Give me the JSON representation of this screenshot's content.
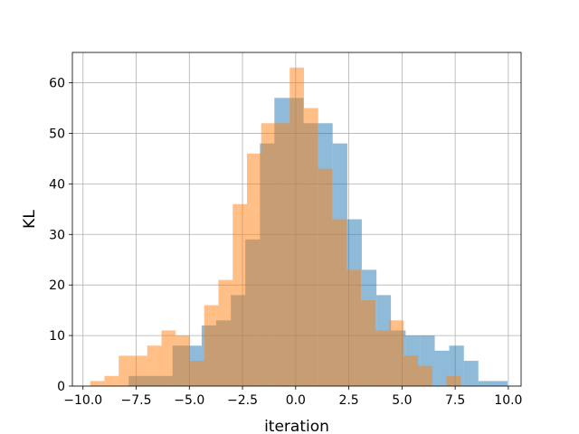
{
  "chart_data": {
    "type": "histogram",
    "title": "",
    "xlabel": "iteration",
    "ylabel": "KL",
    "xlim": [
      -10.5,
      10.6
    ],
    "ylim": [
      0,
      66
    ],
    "grid": true,
    "legend": "none",
    "x_ticks": [
      -10.0,
      -7.5,
      -5.0,
      -2.5,
      0.0,
      2.5,
      5.0,
      7.5,
      10.0
    ],
    "x_tick_labels": [
      "−10.0",
      "−7.5",
      "−5.0",
      "−2.5",
      "0.0",
      "2.5",
      "5.0",
      "7.5",
      "10.0"
    ],
    "y_ticks": [
      0,
      10,
      20,
      30,
      40,
      50,
      60
    ],
    "y_tick_labels": [
      "0",
      "10",
      "20",
      "30",
      "40",
      "50",
      "60"
    ],
    "series": [
      {
        "color": "#1f77b4",
        "opacity": 0.5,
        "bins": [
          [
            -7.85,
            -7.16,
            2
          ],
          [
            -7.16,
            -6.48,
            2
          ],
          [
            -6.48,
            -5.79,
            2
          ],
          [
            -5.79,
            -5.11,
            8
          ],
          [
            -5.11,
            -4.42,
            8
          ],
          [
            -4.42,
            -3.74,
            12
          ],
          [
            -3.74,
            -3.05,
            13
          ],
          [
            -3.05,
            -2.37,
            18
          ],
          [
            -2.37,
            -1.68,
            29
          ],
          [
            -1.68,
            -1.0,
            48
          ],
          [
            -1.0,
            -0.31,
            57
          ],
          [
            -0.31,
            0.37,
            57
          ],
          [
            0.37,
            1.06,
            52
          ],
          [
            1.06,
            1.74,
            52
          ],
          [
            1.74,
            2.43,
            48
          ],
          [
            2.43,
            3.11,
            33
          ],
          [
            3.11,
            3.8,
            23
          ],
          [
            3.8,
            4.48,
            18
          ],
          [
            4.48,
            5.17,
            11
          ],
          [
            5.17,
            5.85,
            10
          ],
          [
            5.85,
            6.54,
            10
          ],
          [
            6.54,
            7.22,
            7
          ],
          [
            7.22,
            7.91,
            8
          ],
          [
            7.91,
            8.59,
            5
          ],
          [
            8.59,
            9.28,
            1
          ],
          [
            9.28,
            9.96,
            1
          ]
        ]
      },
      {
        "color": "#ff7f0e",
        "opacity": 0.5,
        "bins": [
          [
            -9.66,
            -8.99,
            1
          ],
          [
            -8.99,
            -8.32,
            2
          ],
          [
            -8.32,
            -7.65,
            6
          ],
          [
            -7.65,
            -6.98,
            6
          ],
          [
            -6.98,
            -6.31,
            8
          ],
          [
            -6.31,
            -5.64,
            11
          ],
          [
            -5.64,
            -4.97,
            10
          ],
          [
            -4.97,
            -4.3,
            5
          ],
          [
            -4.3,
            -3.63,
            16
          ],
          [
            -3.63,
            -2.96,
            21
          ],
          [
            -2.96,
            -2.29,
            36
          ],
          [
            -2.29,
            -1.62,
            46
          ],
          [
            -1.62,
            -0.95,
            52
          ],
          [
            -0.95,
            -0.28,
            52
          ],
          [
            -0.28,
            0.39,
            63
          ],
          [
            0.39,
            1.06,
            55
          ],
          [
            1.06,
            1.73,
            43
          ],
          [
            1.73,
            2.4,
            33
          ],
          [
            2.4,
            3.07,
            23
          ],
          [
            3.07,
            3.74,
            17
          ],
          [
            3.74,
            4.41,
            11
          ],
          [
            4.41,
            5.08,
            13
          ],
          [
            5.08,
            5.75,
            6
          ],
          [
            5.75,
            6.42,
            4
          ],
          [
            6.42,
            7.09,
            0
          ],
          [
            7.09,
            7.76,
            2
          ]
        ]
      }
    ]
  }
}
